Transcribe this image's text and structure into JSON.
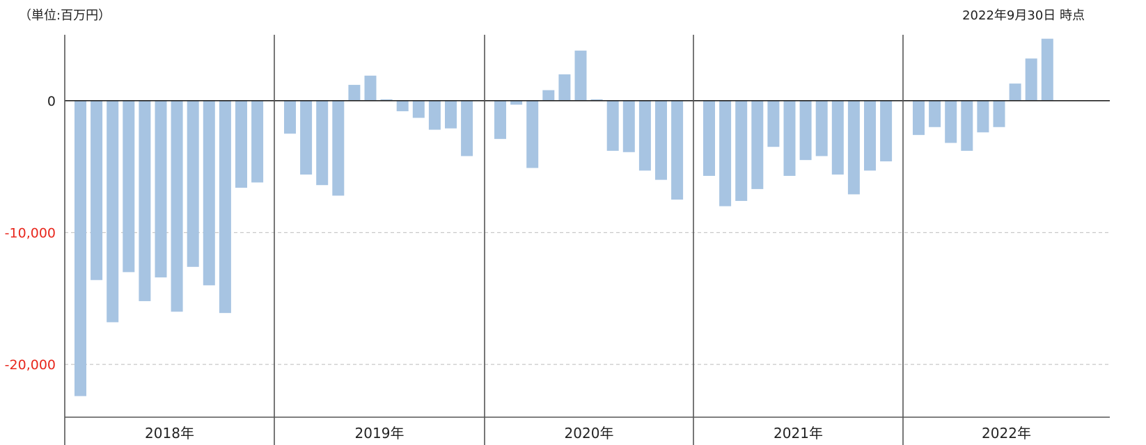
{
  "header": {
    "unit_label": "（単位:百万円）",
    "as_of_label": "2022年9月30日 時点"
  },
  "colors": {
    "bar": "#a7c4e2",
    "negative_tick": "#e8271d",
    "zero_tick": "#222222",
    "axis": "#555555",
    "grid": "#c8c8c8"
  },
  "chart_data": {
    "type": "bar",
    "ylim": [
      -24000,
      5000
    ],
    "y_ticks": [
      {
        "value": 0,
        "label": "0"
      },
      {
        "value": -10000,
        "label": "-10,000"
      },
      {
        "value": -20000,
        "label": "-20,000"
      }
    ],
    "grid": "dashed-horizontal",
    "legend": "none",
    "groups": [
      {
        "label": "2018年",
        "values": [
          -22400,
          -13600,
          -16800,
          -13000,
          -15200,
          -13400,
          -16000,
          -12600,
          -14000,
          -16100,
          -6600,
          -6200
        ]
      },
      {
        "label": "2019年",
        "values": [
          -2500,
          -5600,
          -6400,
          -7200,
          1200,
          1900,
          100,
          -800,
          -1300,
          -2200,
          -2100,
          -4200
        ]
      },
      {
        "label": "2020年",
        "values": [
          -2900,
          -300,
          -5100,
          800,
          2000,
          3800,
          100,
          -3800,
          -3900,
          -5300,
          -6000,
          -7500
        ]
      },
      {
        "label": "2021年",
        "values": [
          -5700,
          -8000,
          -7600,
          -6700,
          -3500,
          -5700,
          -4500,
          -4200,
          -5600,
          -7100,
          -5300,
          -4600
        ]
      },
      {
        "label": "2022年",
        "values": [
          -2600,
          -2000,
          -3200,
          -3800,
          -2400,
          -2000,
          1300,
          3200,
          4700
        ]
      }
    ]
  }
}
